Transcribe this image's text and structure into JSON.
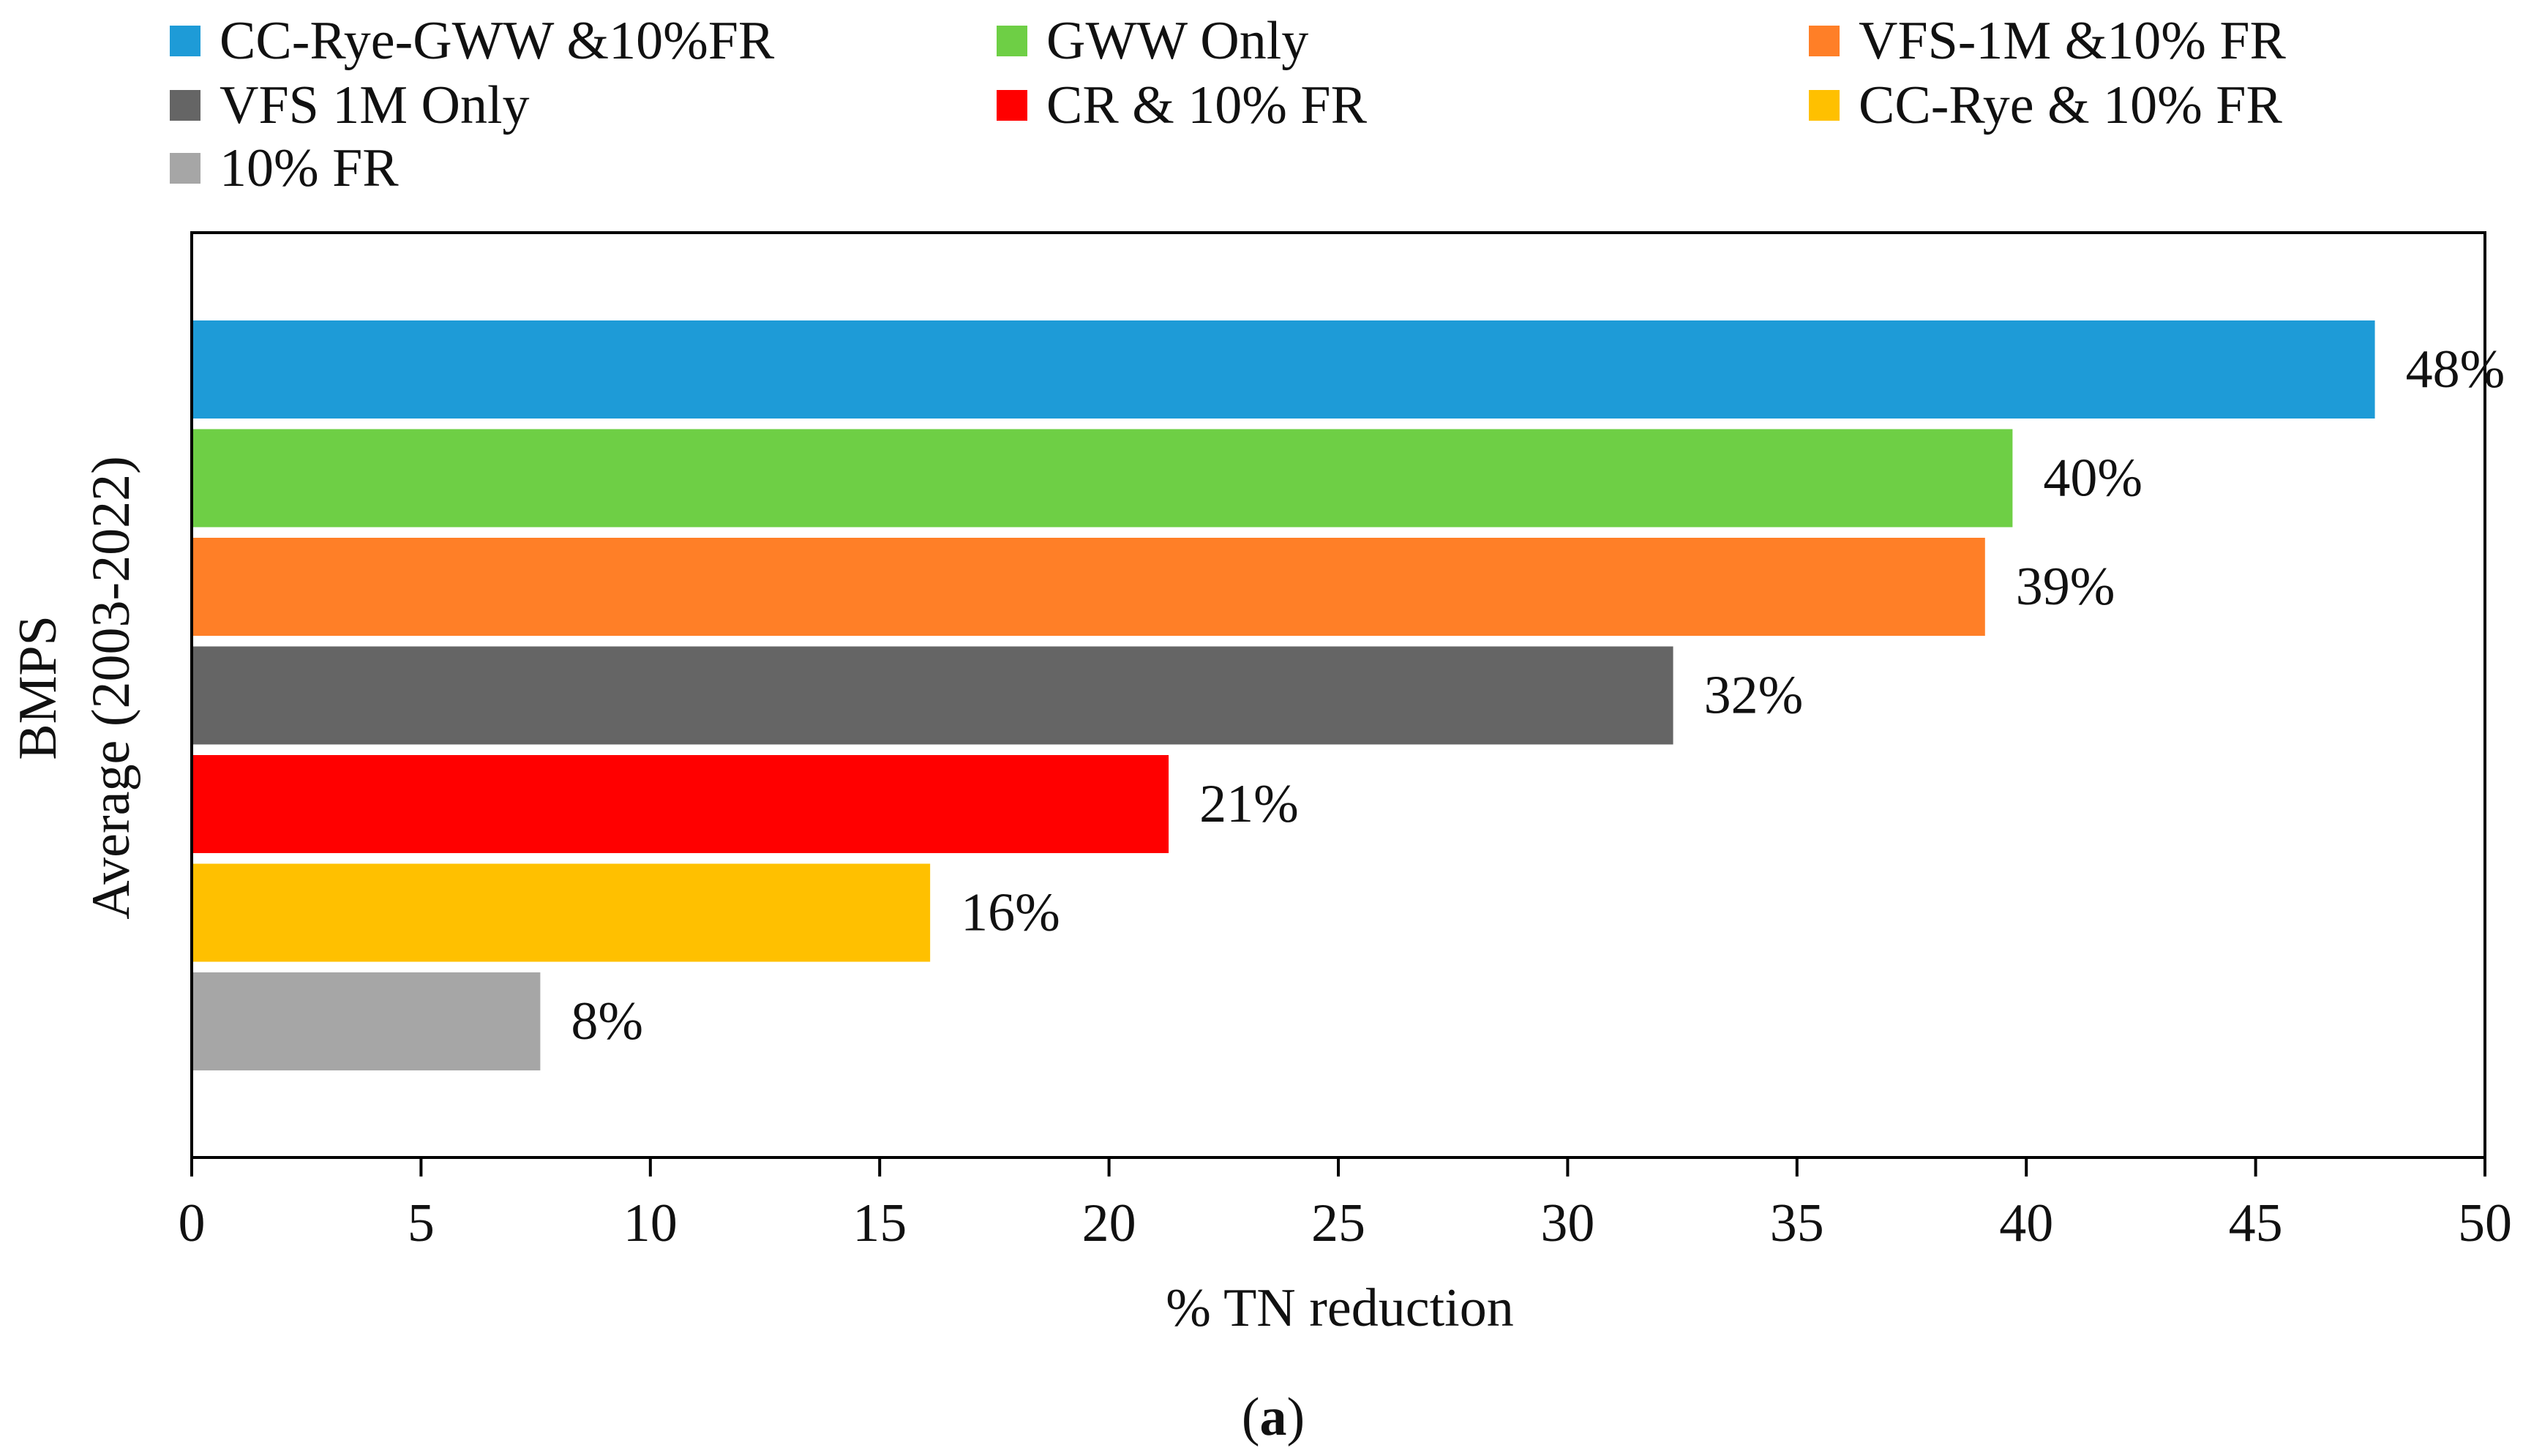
{
  "chart_data": {
    "type": "bar",
    "orientation": "horizontal",
    "categories": [
      "CC-Rye-GWW &10%FR",
      "GWW Only",
      "VFS-1M &10% FR",
      "VFS 1M Only",
      "CR & 10% FR",
      "CC-Rye & 10% FR",
      "10% FR"
    ],
    "values": [
      47.6,
      39.7,
      39.1,
      32.3,
      21.3,
      16.1,
      7.6
    ],
    "data_labels": [
      "48%",
      "40%",
      "39%",
      "32%",
      "21%",
      "16%",
      "8%"
    ],
    "colors": [
      "#1E9BD7",
      "#6ECF45",
      "#FF7F27",
      "#656565",
      "#FF0000",
      "#FFC000",
      "#A6A6A6"
    ],
    "xlabel": "% TN reduction",
    "ylabel_line1": "BMPS",
    "ylabel_line2": "Average (2003-2022)",
    "xlim": [
      0,
      50
    ],
    "xticks": [
      0,
      5,
      10,
      15,
      20,
      25,
      30,
      35,
      40,
      45,
      50
    ],
    "grid": false,
    "legend_position": "top"
  },
  "caption": {
    "open": "(",
    "letter": "a",
    "close": ")"
  }
}
